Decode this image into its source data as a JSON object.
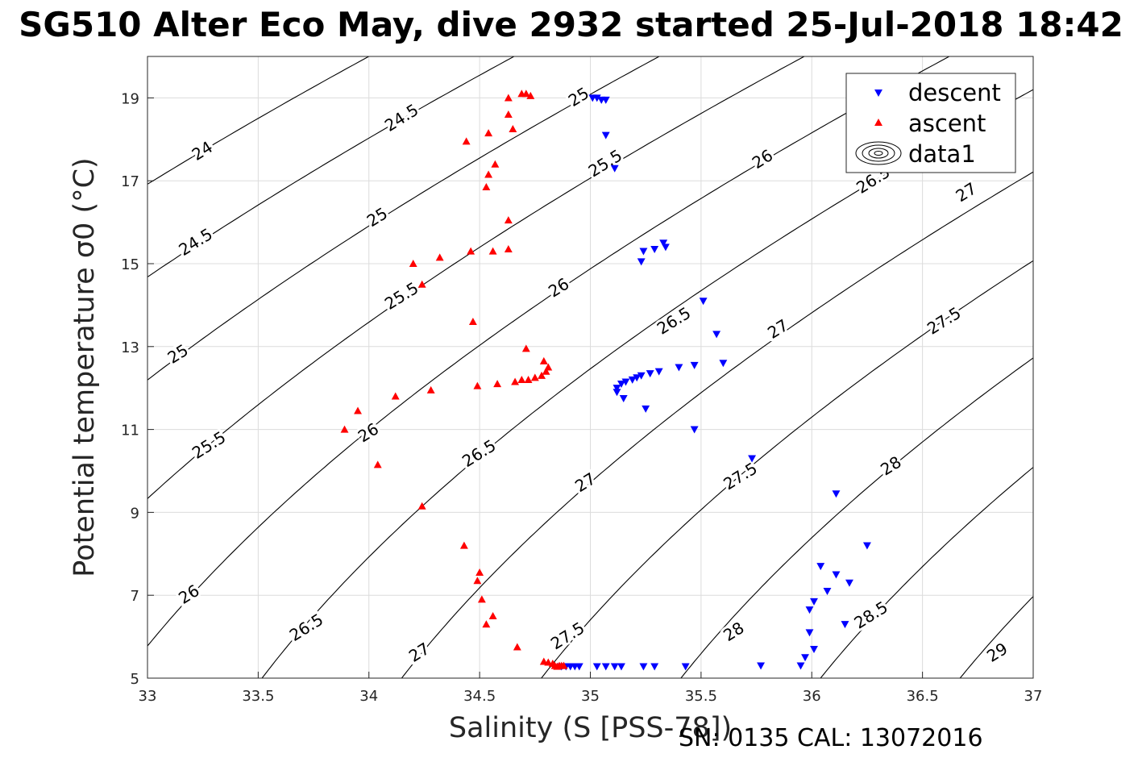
{
  "title": "SG510 Alter Eco May, dive 2932 started 25-Jul-2018 18:42",
  "footer": "SN: 0135  CAL: 13072016",
  "colors": {
    "descent": "#0000ff",
    "ascent": "#ff0000",
    "contour": "#000000",
    "grid": "#dcdcdc"
  },
  "chart_data": {
    "type": "scatter",
    "xlabel": "Salinity (S [PSS-78])",
    "ylabel": "Potential temperature σ0 (°C)",
    "xlim": [
      33,
      37
    ],
    "ylim": [
      5,
      20
    ],
    "grid": true,
    "legend_position": "top-right",
    "x_ticks": [
      "33",
      "33.5",
      "34",
      "34.5",
      "35",
      "35.5",
      "36",
      "36.5",
      "37"
    ],
    "y_ticks": [
      "5",
      "7",
      "9",
      "11",
      "13",
      "15",
      "17",
      "19"
    ],
    "legend": [
      "descent",
      "ascent",
      "data1"
    ],
    "contour_levels": [
      24,
      24.5,
      25,
      25.5,
      26,
      26.5,
      27,
      27.5,
      28,
      28.5,
      29
    ],
    "contour_labels": [
      {
        "text": "24",
        "x": 33.25,
        "y": 17.7
      },
      {
        "text": "24.5",
        "x": 34.15,
        "y": 18.5
      },
      {
        "text": "25",
        "x": 34.95,
        "y": 19.0
      },
      {
        "text": "24.5",
        "x": 33.22,
        "y": 15.5
      },
      {
        "text": "25",
        "x": 34.04,
        "y": 16.1
      },
      {
        "text": "25.5",
        "x": 35.07,
        "y": 17.4
      },
      {
        "text": "26",
        "x": 35.78,
        "y": 17.5
      },
      {
        "text": "26.5",
        "x": 36.28,
        "y": 17.0
      },
      {
        "text": "25",
        "x": 33.14,
        "y": 12.8
      },
      {
        "text": "25.5",
        "x": 34.15,
        "y": 14.2
      },
      {
        "text": "26",
        "x": 34.86,
        "y": 14.4
      },
      {
        "text": "26.5",
        "x": 35.38,
        "y": 13.6
      },
      {
        "text": "27",
        "x": 35.85,
        "y": 13.4
      },
      {
        "text": "27.5",
        "x": 36.6,
        "y": 13.6
      },
      {
        "text": "27",
        "x": 36.7,
        "y": 16.7
      },
      {
        "text": "25.5",
        "x": 33.28,
        "y": 10.6
      },
      {
        "text": "26",
        "x": 34.0,
        "y": 10.9
      },
      {
        "text": "26.5",
        "x": 34.5,
        "y": 10.4
      },
      {
        "text": "27",
        "x": 34.98,
        "y": 9.7
      },
      {
        "text": "27.5",
        "x": 35.68,
        "y": 9.85
      },
      {
        "text": "28",
        "x": 36.36,
        "y": 10.1
      },
      {
        "text": "26",
        "x": 33.19,
        "y": 7.0
      },
      {
        "text": "26.5",
        "x": 33.72,
        "y": 6.2
      },
      {
        "text": "27",
        "x": 34.23,
        "y": 5.6
      },
      {
        "text": "27.5",
        "x": 34.9,
        "y": 6.0
      },
      {
        "text": "28",
        "x": 35.65,
        "y": 6.1
      },
      {
        "text": "28.5",
        "x": 36.27,
        "y": 6.5
      },
      {
        "text": "29",
        "x": 36.84,
        "y": 5.6
      }
    ],
    "series": [
      {
        "name": "descent",
        "marker": "triangle-down",
        "points": [
          [
            35.01,
            19.0
          ],
          [
            35.03,
            19.0
          ],
          [
            35.05,
            18.95
          ],
          [
            35.07,
            18.95
          ],
          [
            35.07,
            18.1
          ],
          [
            35.11,
            17.3
          ],
          [
            35.24,
            15.3
          ],
          [
            35.29,
            15.35
          ],
          [
            35.33,
            15.5
          ],
          [
            35.34,
            15.4
          ],
          [
            35.23,
            15.05
          ],
          [
            35.51,
            14.1
          ],
          [
            35.57,
            13.3
          ],
          [
            35.6,
            12.6
          ],
          [
            35.47,
            12.55
          ],
          [
            35.4,
            12.5
          ],
          [
            35.31,
            12.4
          ],
          [
            35.27,
            12.35
          ],
          [
            35.23,
            12.3
          ],
          [
            35.21,
            12.25
          ],
          [
            35.19,
            12.2
          ],
          [
            35.16,
            12.15
          ],
          [
            35.14,
            12.1
          ],
          [
            35.12,
            12.0
          ],
          [
            35.12,
            11.9
          ],
          [
            35.15,
            11.75
          ],
          [
            35.25,
            11.5
          ],
          [
            35.47,
            11.0
          ],
          [
            35.73,
            10.3
          ],
          [
            36.11,
            9.45
          ],
          [
            36.25,
            8.2
          ],
          [
            36.04,
            7.7
          ],
          [
            36.11,
            7.5
          ],
          [
            36.17,
            7.3
          ],
          [
            36.07,
            7.1
          ],
          [
            36.01,
            6.85
          ],
          [
            35.99,
            6.65
          ],
          [
            36.15,
            6.3
          ],
          [
            35.99,
            6.1
          ],
          [
            36.01,
            5.7
          ],
          [
            35.97,
            5.5
          ],
          [
            35.95,
            5.3
          ],
          [
            35.77,
            5.3
          ],
          [
            35.43,
            5.28
          ],
          [
            35.29,
            5.28
          ],
          [
            35.24,
            5.28
          ],
          [
            35.14,
            5.28
          ],
          [
            35.11,
            5.28
          ],
          [
            35.07,
            5.28
          ],
          [
            35.03,
            5.28
          ],
          [
            34.95,
            5.28
          ],
          [
            34.93,
            5.28
          ],
          [
            34.91,
            5.28
          ],
          [
            34.89,
            5.28
          ],
          [
            34.87,
            5.28
          ]
        ]
      },
      {
        "name": "ascent",
        "marker": "triangle-up",
        "points": [
          [
            34.69,
            19.1
          ],
          [
            34.71,
            19.1
          ],
          [
            34.73,
            19.05
          ],
          [
            34.63,
            19.0
          ],
          [
            34.63,
            18.6
          ],
          [
            34.65,
            18.25
          ],
          [
            34.54,
            18.15
          ],
          [
            34.44,
            17.95
          ],
          [
            34.57,
            17.4
          ],
          [
            34.54,
            17.15
          ],
          [
            34.53,
            16.85
          ],
          [
            34.63,
            16.05
          ],
          [
            34.46,
            15.3
          ],
          [
            34.56,
            15.3
          ],
          [
            34.63,
            15.35
          ],
          [
            34.32,
            15.15
          ],
          [
            34.2,
            15.0
          ],
          [
            34.24,
            14.5
          ],
          [
            34.47,
            13.6
          ],
          [
            34.71,
            12.95
          ],
          [
            34.79,
            12.65
          ],
          [
            34.81,
            12.5
          ],
          [
            34.8,
            12.4
          ],
          [
            34.78,
            12.3
          ],
          [
            34.75,
            12.25
          ],
          [
            34.72,
            12.2
          ],
          [
            34.69,
            12.2
          ],
          [
            34.66,
            12.15
          ],
          [
            34.58,
            12.1
          ],
          [
            34.49,
            12.05
          ],
          [
            34.28,
            11.95
          ],
          [
            34.12,
            11.8
          ],
          [
            33.95,
            11.45
          ],
          [
            33.89,
            11.0
          ],
          [
            34.04,
            10.15
          ],
          [
            34.24,
            9.15
          ],
          [
            34.43,
            8.2
          ],
          [
            34.5,
            7.55
          ],
          [
            34.49,
            7.35
          ],
          [
            34.51,
            6.9
          ],
          [
            34.56,
            6.5
          ],
          [
            34.53,
            6.3
          ],
          [
            34.67,
            5.75
          ],
          [
            34.79,
            5.4
          ],
          [
            34.81,
            5.38
          ],
          [
            34.83,
            5.35
          ],
          [
            34.84,
            5.3
          ],
          [
            34.85,
            5.28
          ],
          [
            34.86,
            5.3
          ],
          [
            34.87,
            5.3
          ],
          [
            34.88,
            5.3
          ]
        ]
      }
    ]
  }
}
